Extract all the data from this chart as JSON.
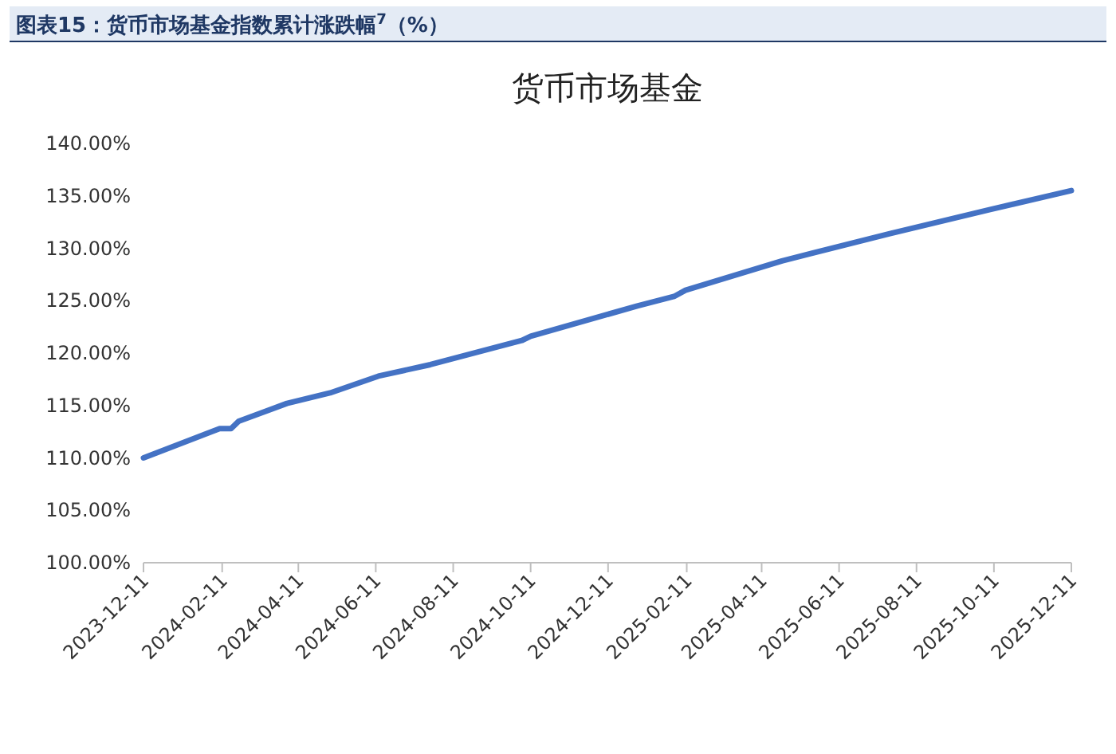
{
  "chart_data": {
    "type": "line",
    "title": "货币市场基金",
    "subtitle": "图表15：货币市场基金指数累计涨跌幅$^{7}$（%）",
    "x": [
      "2023-12-11",
      "2024-02-09",
      "2024-02-18",
      "2024-02-24",
      "2024-04-02",
      "2024-05-06",
      "2024-06-13",
      "2024-07-24",
      "2024-10-04",
      "2024-10-11",
      "2025-01-03",
      "2025-02-01",
      "2025-02-10",
      "2025-04-27",
      "2025-07-21",
      "2025-10-08",
      "2025-12-11"
    ],
    "series": [
      {
        "color": "#4472c4",
        "values": [
          110.0,
          112.8,
          112.8,
          113.5,
          115.2,
          116.2,
          117.8,
          118.9,
          121.2,
          121.6,
          124.5,
          125.4,
          126.0,
          128.8,
          131.4,
          133.7,
          135.5
        ]
      }
    ],
    "xlim": [
      "2023-12-11",
      "2025-12-11"
    ],
    "xticks": [
      "2023-12-11",
      "2024-02-11",
      "2024-04-11",
      "2024-06-11",
      "2024-08-11",
      "2024-10-11",
      "2024-12-11",
      "2025-02-11",
      "2025-04-11",
      "2025-06-11",
      "2025-08-11",
      "2025-10-11",
      "2025-12-11"
    ],
    "ylim": [
      100,
      140
    ],
    "yticks": [
      {
        "value": 100,
        "label": "100.00%"
      },
      {
        "value": 105,
        "label": "105.00%"
      },
      {
        "value": 110,
        "label": "110.00%"
      },
      {
        "value": 115,
        "label": "115.00%"
      },
      {
        "value": 120,
        "label": "120.00%"
      },
      {
        "value": 125,
        "label": "125.00%"
      },
      {
        "value": 130,
        "label": "130.00%"
      },
      {
        "value": 135,
        "label": "135.00%"
      },
      {
        "value": 140,
        "label": "140.00%"
      }
    ],
    "marker": "none",
    "line_style": "solid"
  }
}
